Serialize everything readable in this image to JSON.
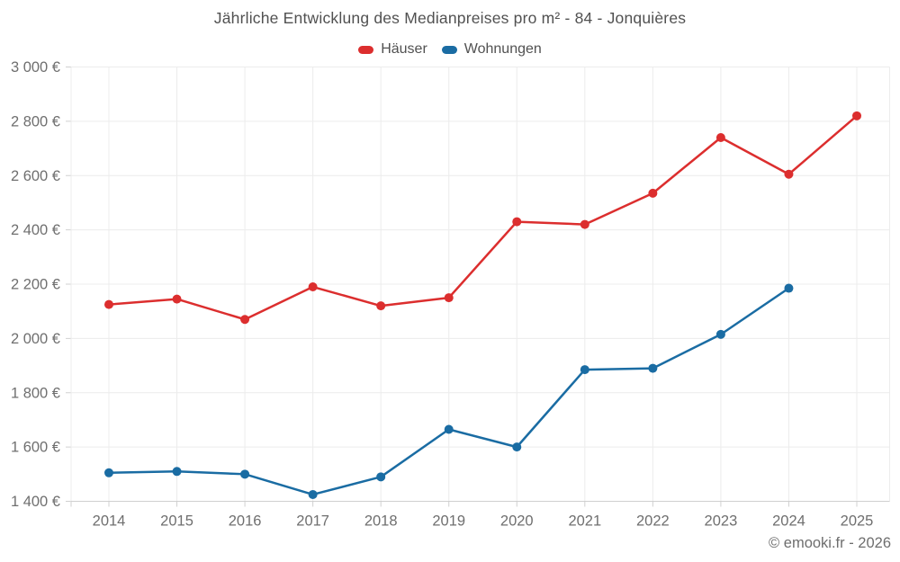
{
  "title": "Jährliche Entwicklung des Medianpreises pro m² - 84 - Jonquières",
  "legend": {
    "items": [
      {
        "label": "Häuser",
        "color": "#dc2e2e"
      },
      {
        "label": "Wohnungen",
        "color": "#1a6ca3"
      }
    ]
  },
  "footer": {
    "copyright": "© emooki.fr - 2026"
  },
  "chart_data": {
    "type": "line",
    "title": "Jährliche Entwicklung des Medianpreises pro m² - 84 - Jonquières",
    "x": [
      2014,
      2015,
      2016,
      2017,
      2018,
      2019,
      2020,
      2021,
      2022,
      2023,
      2024,
      2025
    ],
    "series": [
      {
        "name": "Häuser",
        "color": "#dc2e2e",
        "values": [
          2125,
          2145,
          2070,
          2190,
          2120,
          2150,
          2430,
          2420,
          2535,
          2740,
          2605,
          2820
        ]
      },
      {
        "name": "Wohnungen",
        "color": "#1a6ca3",
        "values": [
          1505,
          1510,
          1500,
          1425,
          1490,
          1665,
          1600,
          1885,
          1890,
          2015,
          2185,
          null
        ]
      }
    ],
    "xlabel": "",
    "ylabel": "",
    "ylim": [
      1400,
      3000
    ],
    "ytick_step": 200,
    "ytick_suffix": " €",
    "grid": true,
    "legend_position": "top",
    "marker": "circle"
  },
  "colors": {
    "background": "#ffffff",
    "grid": "#ececec",
    "axis": "#cfcfcf",
    "tick": "#d0d0d0",
    "tick_label": "#6f6f6f",
    "title_text": "#515151",
    "footer_text": "#6e6e6e"
  }
}
